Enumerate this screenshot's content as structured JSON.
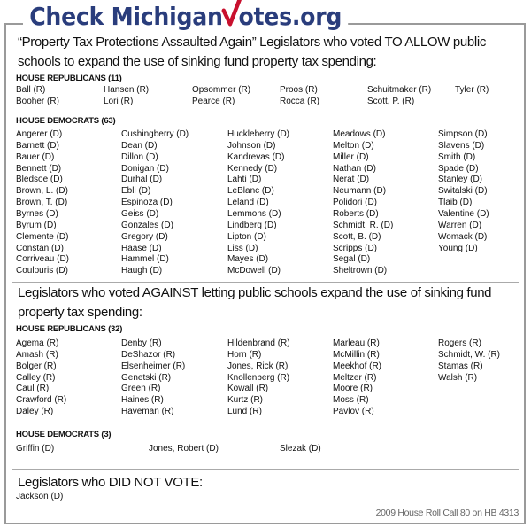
{
  "logo": {
    "text_before": "Check Michigan",
    "text_check": "V",
    "text_after": "otes.org",
    "brand_color": "#2a3d7c",
    "check_color": "#c8102e"
  },
  "for": {
    "heading_line1": "“Property Tax Protections Assaulted Again” Legislators who voted TO ALLOW public",
    "heading_line2": "schools to expand the use of sinking fund property tax spending:",
    "republicans": {
      "label": "HOUSE REPUBLICANS (11)",
      "names": [
        "Ball (R)",
        "Booher (R)",
        "Hansen (R)",
        "Lori (R)",
        "Opsommer (R)",
        "Pearce (R)",
        "Proos (R)",
        "Rocca (R)",
        "Schuitmaker (R)",
        "Scott, P. (R)",
        "Tyler (R)"
      ]
    },
    "democrats": {
      "label": "HOUSE DEMOCRATS (63)",
      "names": [
        "Angerer (D)",
        "Barnett (D)",
        "Bauer (D)",
        "Bennett (D)",
        "Bledsoe (D)",
        "Brown, L. (D)",
        "Brown, T. (D)",
        "Byrnes (D)",
        "Byrum (D)",
        "Clemente (D)",
        "Constan (D)",
        "Corriveau (D)",
        "Coulouris (D)",
        "Cushingberry (D)",
        "Dean (D)",
        "Dillon (D)",
        "Donigan (D)",
        "Durhal (D)",
        "Ebli (D)",
        "Espinoza (D)",
        "Geiss (D)",
        "Gonzales (D)",
        "Gregory (D)",
        "Haase (D)",
        "Hammel (D)",
        "Haugh (D)",
        "Huckleberry (D)",
        "Johnson (D)",
        "Kandrevas (D)",
        "Kennedy (D)",
        "Lahti (D)",
        "LeBlanc (D)",
        "Leland (D)",
        "Lemmons (D)",
        "Lindberg (D)",
        "Lipton (D)",
        "Liss (D)",
        "Mayes (D)",
        "McDowell (D)",
        "Meadows (D)",
        "Melton (D)",
        "Miller (D)",
        "Nathan (D)",
        "Nerat (D)",
        "Neumann (D)",
        "Polidori (D)",
        "Roberts (D)",
        "Schmidt, R. (D)",
        "Scott, B. (D)",
        "Scripps (D)",
        "Segal (D)",
        "Sheltrown (D)",
        "Simpson (D)",
        "Slavens (D)",
        "Smith (D)",
        "Spade (D)",
        "Stanley (D)",
        "Switalski (D)",
        "Tlaib (D)",
        "Valentine (D)",
        "Warren (D)",
        "Womack (D)",
        "Young (D)"
      ]
    }
  },
  "against": {
    "heading_line1": "Legislators who voted AGAINST letting public schools expand the use of sinking fund",
    "heading_line2": "property tax spending:",
    "republicans": {
      "label": "HOUSE REPUBLICANS (32)",
      "names": [
        "Agema (R)",
        "Amash (R)",
        "Bolger (R)",
        "Calley (R)",
        "Caul (R)",
        "Crawford (R)",
        "Daley (R)",
        "Denby (R)",
        "DeShazor (R)",
        "Elsenheimer (R)",
        "Genetski (R)",
        "Green (R)",
        "Haines (R)",
        "Haveman (R)",
        "Hildenbrand (R)",
        "Horn (R)",
        "Jones, Rick (R)",
        "Knollenberg (R)",
        "Kowall (R)",
        "Kurtz (R)",
        "Lund (R)",
        "Marleau (R)",
        "McMillin (R)",
        "Meekhof (R)",
        "Meltzer (R)",
        "Moore (R)",
        "Moss (R)",
        "Pavlov (R)",
        "Rogers (R)",
        "Schmidt, W. (R)",
        "Stamas (R)",
        "Walsh (R)"
      ]
    },
    "democrats": {
      "label": "HOUSE DEMOCRATS (3)",
      "names": [
        "Griffin (D)",
        "Jones, Robert (D)",
        "Slezak (D)"
      ]
    }
  },
  "did_not_vote": {
    "heading": "Legislators who DID NOT VOTE:",
    "names": [
      "Jackson (D)"
    ]
  },
  "footer": "2009 House Roll Call 80 on HB 4313"
}
